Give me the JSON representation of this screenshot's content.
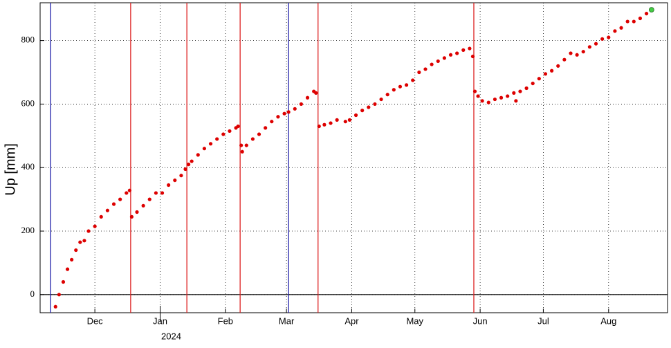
{
  "chart_data": {
    "type": "scatter",
    "y_label": "Up [mm]",
    "year_label": "2024",
    "xlim": [
      -26,
      272
    ],
    "ylim": [
      -57,
      919
    ],
    "xticks": [
      {
        "value": 0,
        "label": "Dec"
      },
      {
        "value": 31,
        "label": "Jan"
      },
      {
        "value": 62,
        "label": "Feb"
      },
      {
        "value": 91,
        "label": "Mar"
      },
      {
        "value": 122,
        "label": "Apr"
      },
      {
        "value": 152,
        "label": "May"
      },
      {
        "value": 183,
        "label": "Jun"
      },
      {
        "value": 213,
        "label": "Jul"
      },
      {
        "value": 244,
        "label": "Aug"
      }
    ],
    "yticks": [
      0,
      200,
      400,
      600,
      800
    ],
    "grid": true,
    "vlines": [
      {
        "x": -21,
        "color": "#2222aa"
      },
      {
        "x": 17,
        "color": "#dd2222"
      },
      {
        "x": 43.7,
        "color": "#dd2222"
      },
      {
        "x": 69,
        "color": "#dd2222"
      },
      {
        "x": 92,
        "color": "#2222aa"
      },
      {
        "x": 106,
        "color": "#dd2222"
      },
      {
        "x": 180,
        "color": "#dd2222"
      }
    ],
    "series": [
      {
        "color": "#dd0000",
        "x": [
          -18.7,
          -17,
          -15,
          -13,
          -11,
          -9,
          -7,
          -5,
          -3,
          0,
          3,
          6,
          9,
          12,
          15,
          16.5,
          17.5,
          20,
          23,
          26,
          29,
          32,
          35,
          38,
          41,
          43,
          44.5,
          46,
          49,
          52,
          55,
          58,
          61,
          64,
          67,
          68,
          69.5,
          70,
          72,
          75,
          78,
          81,
          84,
          87,
          90,
          92,
          95,
          98,
          101,
          104,
          105,
          106.5,
          109,
          112,
          115,
          119,
          121,
          124,
          127,
          130,
          133,
          136,
          139,
          142,
          145,
          148,
          151,
          154,
          157,
          160,
          163,
          166,
          169,
          172,
          175,
          178,
          179.5,
          180.5,
          182,
          184,
          187,
          190,
          193,
          196,
          199,
          200,
          202,
          205,
          208,
          211,
          214,
          217,
          220,
          223,
          226,
          229,
          232,
          235,
          238,
          241,
          244,
          247,
          250,
          253,
          256,
          259,
          262
        ],
        "values": [
          -38,
          0,
          40,
          80,
          110,
          140,
          165,
          170,
          200,
          215,
          245,
          265,
          285,
          300,
          320,
          328,
          245,
          260,
          280,
          300,
          320,
          320,
          345,
          360,
          375,
          395,
          410,
          420,
          440,
          460,
          475,
          490,
          505,
          515,
          525,
          530,
          470,
          450,
          470,
          490,
          505,
          525,
          545,
          560,
          570,
          575,
          585,
          600,
          620,
          640,
          635,
          530,
          535,
          540,
          550,
          545,
          550,
          565,
          580,
          590,
          600,
          615,
          630,
          645,
          655,
          660,
          675,
          700,
          710,
          725,
          735,
          745,
          755,
          760,
          770,
          775,
          750,
          640,
          625,
          610,
          605,
          615,
          620,
          625,
          635,
          610,
          640,
          650,
          665,
          680,
          695,
          705,
          720,
          740,
          760,
          755,
          765,
          780,
          790,
          805,
          810,
          830,
          840,
          860,
          860,
          870,
          885
        ]
      },
      {
        "color": "#44cc44",
        "x": [
          264.4
        ],
        "values": [
          897
        ]
      }
    ]
  }
}
